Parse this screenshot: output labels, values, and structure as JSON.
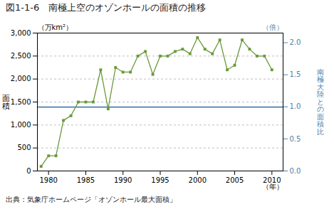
{
  "chart_data": {
    "type": "line",
    "title": "図1-1-6　南極上空のオゾンホールの面積の推移",
    "source": "出典：気象庁ホームページ「オゾンホール最大面積」",
    "ylabel": "面\n積",
    "ylabel_unit": "（万km²）",
    "y2label": "南\n極\n大\n陸\nと\nの\n面\n積\n比",
    "y2label_unit": "（倍）",
    "xlabel": "（年）",
    "x": [
      1979,
      1980,
      1981,
      1982,
      1983,
      1984,
      1985,
      1986,
      1987,
      1988,
      1989,
      1990,
      1991,
      1992,
      1993,
      1994,
      1995,
      1996,
      1997,
      1998,
      1999,
      2000,
      2001,
      2002,
      2003,
      2004,
      2005,
      2006,
      2007,
      2008,
      2009,
      2010
    ],
    "values": [
      100,
      330,
      330,
      1100,
      1200,
      1500,
      1500,
      1500,
      2200,
      1350,
      2250,
      2150,
      2150,
      2500,
      2600,
      2100,
      2500,
      2500,
      2600,
      2650,
      2550,
      2900,
      2650,
      2550,
      2850,
      2200,
      2300,
      2850,
      2650,
      2500,
      2500,
      2200
    ],
    "color": "#6a9a3a",
    "marker": "square",
    "reference_line": {
      "value": 1390,
      "color": "#4d7faa"
    },
    "xlim": [
      1978.5,
      2011.5
    ],
    "xticks": [
      1980,
      1985,
      1990,
      1995,
      2000,
      2005,
      2010
    ],
    "ylim": [
      0,
      3000
    ],
    "yticks": [
      0,
      500,
      {
        "value": 1000,
        "label": "1,000"
      },
      {
        "value": 1500,
        "label": "1,500"
      },
      {
        "value": 2000,
        "label": "2,000"
      },
      {
        "value": 2500,
        "label": "2,500"
      },
      {
        "value": 3000,
        "label": "3,000"
      }
    ],
    "y2lim": [
      0,
      2.15
    ],
    "y2ticks": [
      {
        "value": 0.0,
        "label": "0.0"
      },
      0.5,
      {
        "value": 1.0,
        "label": "1.0"
      },
      1.5,
      {
        "value": 2.0,
        "label": "2.0"
      }
    ],
    "grid": true
  }
}
